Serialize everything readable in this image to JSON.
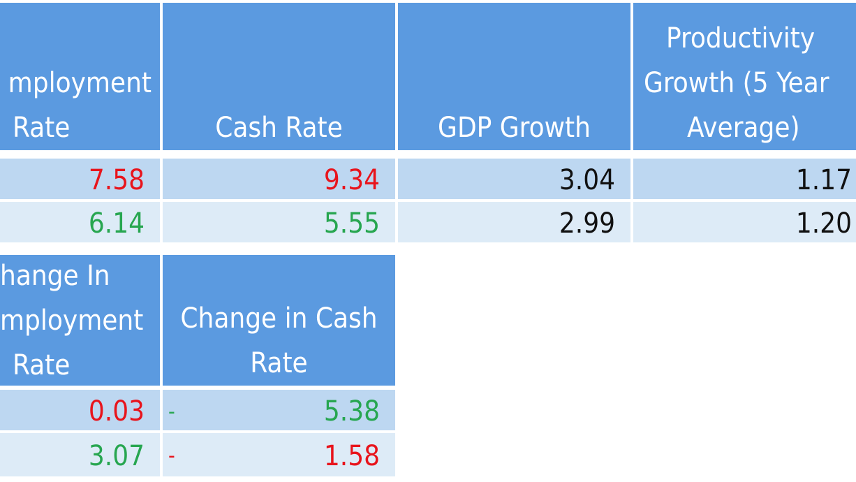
{
  "table1": {
    "headers": {
      "employment_rate": [
        "mployment",
        "Rate"
      ],
      "cash_rate": [
        "Cash Rate"
      ],
      "gdp_growth": [
        "GDP Growth"
      ],
      "productivity": [
        "Productivity",
        "Growth (5 Year",
        "Average)"
      ]
    },
    "rows": [
      {
        "employment_rate": "7.58",
        "cash_rate": "9.34",
        "gdp_growth": "3.04",
        "productivity": "1.17"
      },
      {
        "employment_rate": "6.14",
        "cash_rate": "5.55",
        "gdp_growth": "2.99",
        "productivity": "1.20"
      }
    ]
  },
  "table2": {
    "headers": {
      "change_employment": [
        "hange In",
        "mployment",
        "Rate"
      ],
      "change_cash": [
        "Change in Cash",
        "Rate"
      ]
    },
    "rows": [
      {
        "change_employment": "0.03",
        "change_cash_sign": "-",
        "change_cash": "5.38"
      },
      {
        "change_employment": "3.07",
        "change_cash_sign": "-",
        "change_cash": "1.58"
      }
    ]
  },
  "colors": {
    "header_bg": "#5b9ae0",
    "row_dark": "#bdd7f1",
    "row_light": "#ddebf7",
    "negative": "#e8141c",
    "positive": "#27a650"
  }
}
